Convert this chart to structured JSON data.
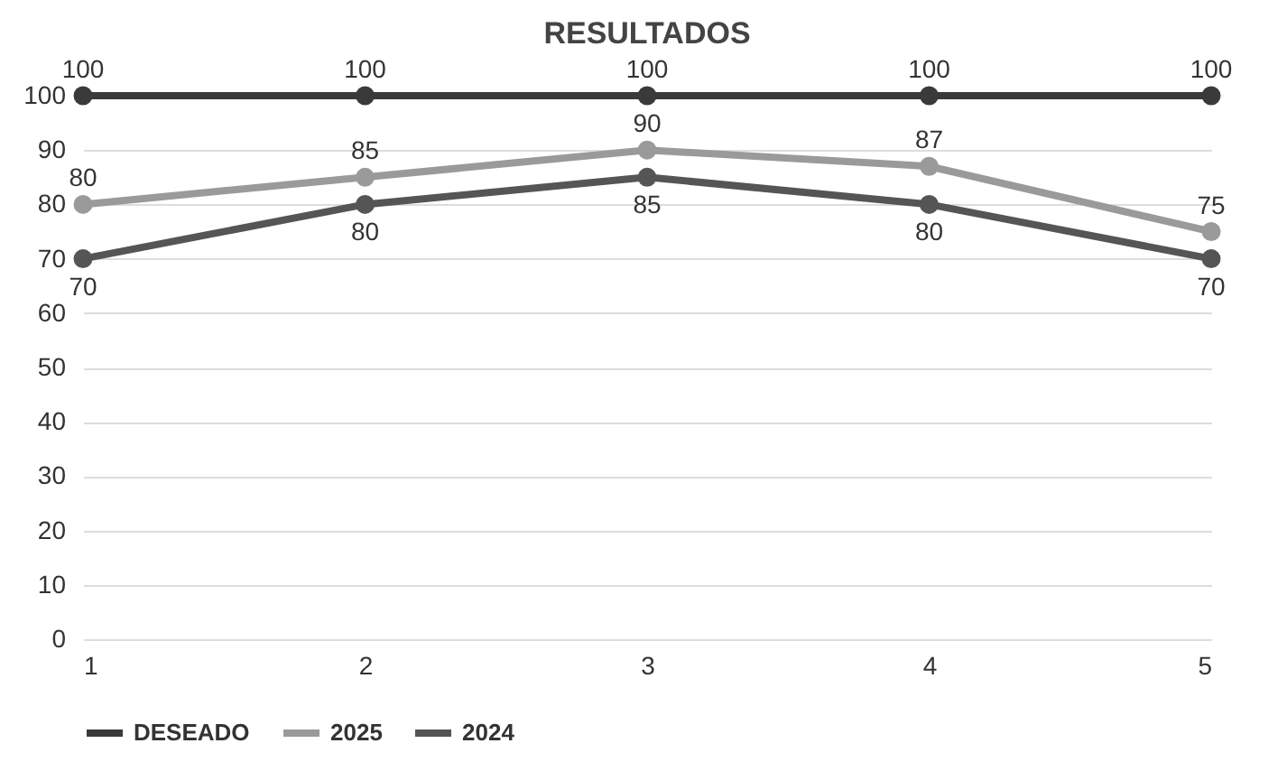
{
  "chart_data": {
    "type": "line",
    "title": "RESULTADOS",
    "x": [
      1,
      2,
      3,
      4,
      5
    ],
    "series": [
      {
        "name": "DESEADO",
        "color": "#3a3a3a",
        "values": [
          100,
          100,
          100,
          100,
          100
        ]
      },
      {
        "name": "2025",
        "color": "#9a9a9a",
        "values": [
          80,
          85,
          90,
          87,
          75
        ]
      },
      {
        "name": "2024",
        "color": "#555555",
        "values": [
          70,
          80,
          85,
          80,
          70
        ]
      }
    ],
    "xlim": [
      1,
      5
    ],
    "xticks": [
      1,
      2,
      3,
      4,
      5
    ],
    "ylim": [
      0,
      100
    ],
    "yticks": [
      0,
      10,
      20,
      30,
      40,
      50,
      60,
      70,
      80,
      90,
      100
    ],
    "grid": "y",
    "legend": "bottom",
    "marker": "circle",
    "line_style": "solid",
    "data_labels": true
  }
}
